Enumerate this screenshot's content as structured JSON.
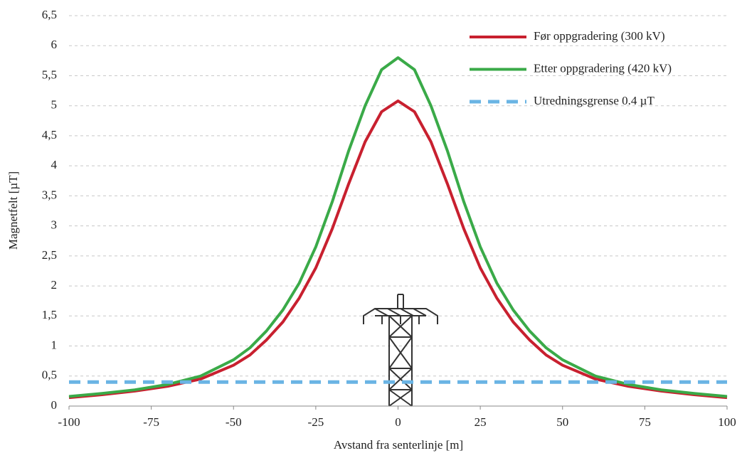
{
  "chart_data": {
    "type": "line",
    "x_label": "Avstand fra senterlinje [m]",
    "y_label": "Magnetfelt [µT]",
    "x": [
      -100,
      -90,
      -80,
      -70,
      -60,
      -50,
      -45,
      -40,
      -35,
      -30,
      -25,
      -20,
      -15,
      -10,
      -5,
      0,
      5,
      10,
      15,
      20,
      25,
      30,
      35,
      40,
      45,
      50,
      60,
      70,
      80,
      90,
      100
    ],
    "series": [
      {
        "name": "Før oppgradering (300 kV)",
        "color": "#c8202f",
        "dashed": false,
        "values": [
          0.14,
          0.19,
          0.25,
          0.33,
          0.45,
          0.68,
          0.85,
          1.1,
          1.4,
          1.8,
          2.3,
          2.95,
          3.7,
          4.4,
          4.9,
          5.08,
          4.9,
          4.4,
          3.7,
          2.95,
          2.3,
          1.8,
          1.4,
          1.1,
          0.85,
          0.68,
          0.45,
          0.33,
          0.25,
          0.19,
          0.14
        ]
      },
      {
        "name": "Etter oppgradering (420 kV)",
        "color": "#3aaa48",
        "dashed": false,
        "values": [
          0.16,
          0.21,
          0.27,
          0.36,
          0.5,
          0.77,
          0.97,
          1.25,
          1.6,
          2.05,
          2.65,
          3.4,
          4.25,
          5.0,
          5.6,
          5.8,
          5.6,
          5.0,
          4.25,
          3.4,
          2.65,
          2.05,
          1.6,
          1.25,
          0.97,
          0.77,
          0.5,
          0.36,
          0.27,
          0.21,
          0.16
        ]
      },
      {
        "name": "Utredningsgrense 0.4 µT",
        "color": "#6ab4e4",
        "dashed": true,
        "x": [
          -100,
          100
        ],
        "values": [
          0.4,
          0.4
        ]
      }
    ],
    "xlim": [
      -100,
      100
    ],
    "xticks": [
      -100,
      -75,
      -50,
      -25,
      0,
      25,
      50,
      75,
      100
    ],
    "ylim": [
      0,
      6.5
    ],
    "yticks": [
      0,
      {
        "value": 0.5,
        "label": "0,5"
      },
      1,
      {
        "value": 1.5,
        "label": "1,5"
      },
      2,
      {
        "value": 2.5,
        "label": "2,5"
      },
      3,
      {
        "value": 3.5,
        "label": "3,5"
      },
      4,
      {
        "value": 4.5,
        "label": "4,5"
      },
      5,
      {
        "value": 5.5,
        "label": "5,5"
      },
      6,
      {
        "value": 6.5,
        "label": "6,5"
      }
    ],
    "grid": true,
    "legend": "top-right"
  }
}
